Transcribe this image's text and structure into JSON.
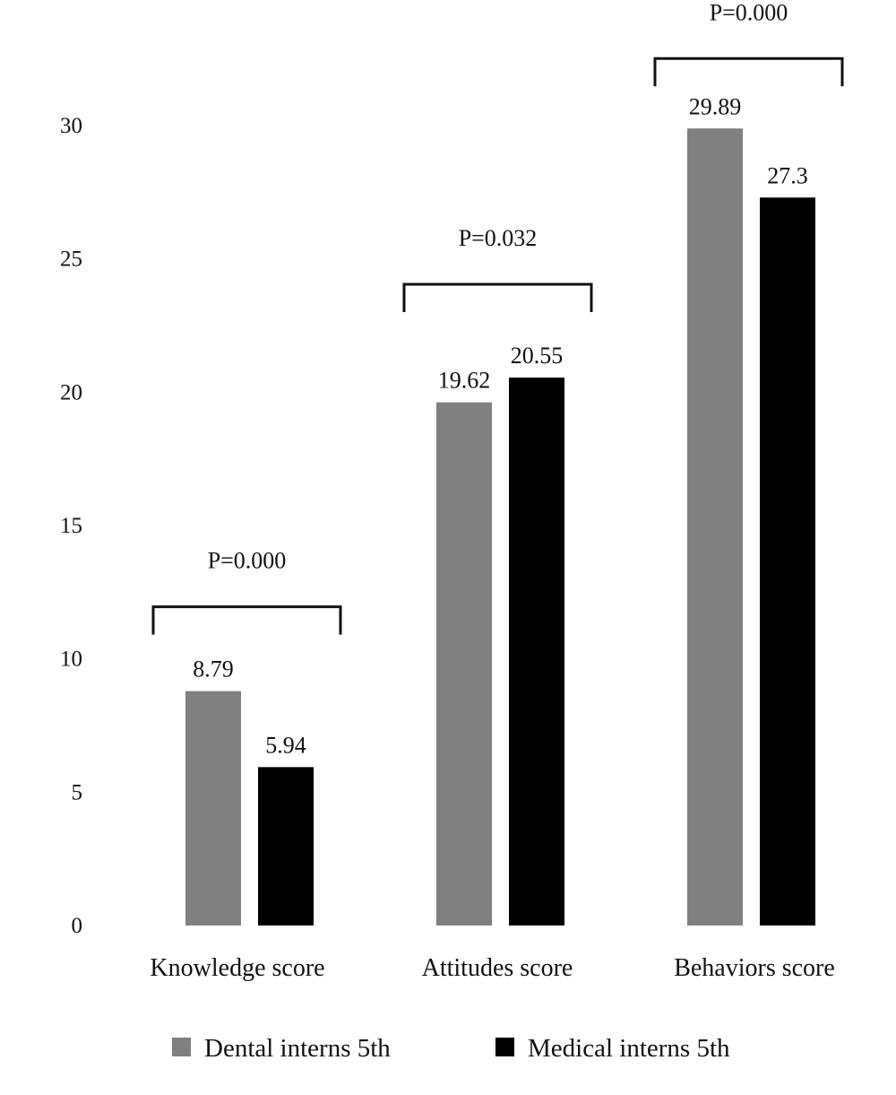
{
  "chart_data": {
    "type": "bar",
    "title": "",
    "xlabel": "",
    "ylabel": "",
    "ylim": [
      0,
      30
    ],
    "yticks": [
      0,
      5,
      10,
      15,
      20,
      25,
      30
    ],
    "grid": false,
    "categories": [
      "Knowledge score",
      "Attitudes score",
      "Behaviors score"
    ],
    "series": [
      {
        "name": "Dental interns 5th",
        "color": "#808080",
        "values": [
          8.79,
          19.62,
          29.89
        ],
        "labels": [
          "8.79",
          "19.62",
          "29.89"
        ]
      },
      {
        "name": "Medical interns 5th",
        "color": "#000000",
        "values": [
          5.94,
          20.55,
          27.3
        ],
        "labels": [
          "5.94",
          "20.55",
          "27.3"
        ]
      }
    ],
    "annotations": [
      "P=0.000",
      "P=0.032",
      "P=0.000"
    ],
    "legend_position": "bottom"
  }
}
